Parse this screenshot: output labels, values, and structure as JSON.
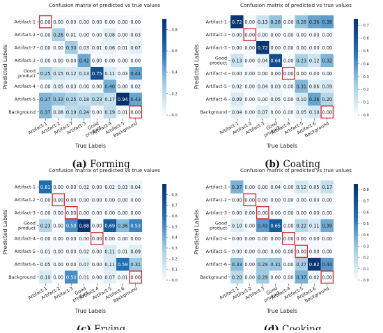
{
  "colors": {
    "cmap_light": "#f7fbff",
    "cmap_dark": "#08306b",
    "highlight": "#d62728"
  },
  "chart_data": [
    {
      "type": "heatmap",
      "title": "Confusion matrix of predicted vs true values",
      "xlabel": "True Labels",
      "ylabel": "Predicted Labels",
      "x_categories": [
        "Artifact-1",
        "Artifact-2",
        "Artifact-7",
        "Artifact-3",
        "Good product",
        "Artifact-4",
        "Artifact-5",
        "Background"
      ],
      "y_categories": [
        "Artifact-1",
        "Artifact-2",
        "Artifact-7",
        "Artifact-3",
        "Good product",
        "Artifact-4",
        "Artifact-5",
        "Background"
      ],
      "values": [
        [
          0.0,
          0.0,
          0.0,
          0.0,
          0.0,
          0.0,
          0.0,
          0.0
        ],
        [
          0.0,
          0.28,
          0.01,
          0.0,
          0.0,
          0.08,
          0.0,
          0.03
        ],
        [
          0.0,
          0.0,
          0.3,
          0.03,
          0.01,
          0.06,
          0.01,
          0.07
        ],
        [
          0.0,
          0.0,
          0.0,
          0.42,
          0.0,
          0.0,
          0.0,
          0.0
        ],
        [
          0.25,
          0.15,
          0.12,
          0.13,
          0.75,
          0.11,
          0.03,
          0.44
        ],
        [
          0.0,
          0.05,
          0.03,
          0.0,
          0.0,
          0.4,
          0.0,
          0.02
        ],
        [
          0.37,
          0.33,
          0.25,
          0.18,
          0.23,
          0.17,
          0.94,
          0.43
        ],
        [
          0.37,
          0.08,
          0.19,
          0.24,
          0.0,
          0.19,
          0.01,
          0.0
        ]
      ],
      "highlighted_cells": [
        [
          0,
          0
        ],
        [
          7,
          7
        ]
      ],
      "colorbar": {
        "min": 0.0,
        "max": 0.9,
        "ticks": [
          "0.8",
          "0.6",
          "0.4",
          "0.2",
          "0.0"
        ]
      },
      "caption_label": "(a)",
      "caption_name": "Forming"
    },
    {
      "type": "heatmap",
      "title": "Confusion matrix of predicted vs true values",
      "xlabel": "True Labels",
      "ylabel": "Predicted Labels",
      "x_categories": [
        "Artifact-1",
        "Artifact-2",
        "Artifact-3",
        "Good product",
        "Artifact-4",
        "Artifact-5",
        "Artifact-6",
        "Background"
      ],
      "y_categories": [
        "Artifact-1",
        "Artifact-2",
        "Artifact-3",
        "Good product",
        "Artifact-4",
        "Artifact-5",
        "Artifact-6",
        "Background"
      ],
      "values": [
        [
          0.72,
          0.0,
          0.13,
          0.28,
          0.0,
          0.28,
          0.36,
          0.38
        ],
        [
          0.0,
          0.0,
          0.0,
          0.0,
          0.0,
          0.0,
          0.0,
          0.0
        ],
        [
          0.0,
          0.0,
          0.72,
          0.0,
          0.0,
          0.0,
          0.0,
          0.0
        ],
        [
          0.13,
          0.0,
          0.04,
          0.64,
          0.0,
          0.23,
          0.12,
          0.32
        ],
        [
          0.0,
          0.0,
          0.0,
          0.0,
          0.0,
          0.0,
          0.0,
          0.0
        ],
        [
          0.02,
          0.0,
          0.04,
          0.03,
          0.0,
          0.31,
          0.06,
          0.09
        ],
        [
          0.09,
          0.0,
          0.0,
          0.05,
          0.0,
          0.1,
          0.36,
          0.2
        ],
        [
          0.04,
          0.0,
          0.07,
          0.0,
          0.0,
          0.05,
          0.1,
          0.0
        ]
      ],
      "highlighted_cells": [
        [
          1,
          1
        ],
        [
          4,
          4
        ],
        [
          7,
          7
        ]
      ],
      "colorbar": {
        "min": 0.0,
        "max": 0.75,
        "ticks": [
          "0.7",
          "0.6",
          "0.5",
          "0.4",
          "0.3",
          "0.2",
          "0.1",
          "0.0"
        ]
      },
      "caption_label": "(b)",
      "caption_name": "Coating"
    },
    {
      "type": "heatmap",
      "title": "Confusion matrix of predicted vs true values",
      "xlabel": "True Labels",
      "ylabel": "Predicted Labels",
      "x_categories": [
        "Artifact-1",
        "Artifact-2",
        "Artifact-3",
        "Good product",
        "Artifact-4",
        "Artifact-5",
        "Artifact-6",
        "Background"
      ],
      "y_categories": [
        "Artifact-1",
        "Artifact-2",
        "Artifact-3",
        "Good product",
        "Artifact-4",
        "Artifact-5",
        "Artifact-6",
        "Background"
      ],
      "values": [
        [
          0.61,
          0.0,
          0.0,
          0.02,
          0.0,
          0.02,
          0.03,
          0.04
        ],
        [
          0.0,
          0.0,
          0.0,
          0.0,
          0.0,
          0.0,
          0.0,
          0.0
        ],
        [
          0.0,
          0.0,
          0.0,
          0.0,
          0.0,
          0.0,
          0.0,
          0.0
        ],
        [
          0.23,
          0.0,
          0.5,
          0.88,
          0.0,
          0.69,
          0.36,
          0.53
        ],
        [
          0.0,
          0.0,
          0.0,
          0.0,
          0.0,
          0.0,
          0.0,
          0.0
        ],
        [
          0.01,
          0.0,
          0.0,
          0.02,
          0.0,
          0.11,
          0.01,
          0.09
        ],
        [
          0.05,
          0.0,
          0.0,
          0.07,
          0.0,
          0.11,
          0.59,
          0.31
        ],
        [
          0.1,
          0.0,
          0.5,
          0.01,
          0.0,
          0.07,
          0.01,
          0.0
        ]
      ],
      "highlighted_cells": [
        [
          1,
          1
        ],
        [
          2,
          2
        ],
        [
          4,
          4
        ],
        [
          7,
          7
        ]
      ],
      "colorbar": {
        "min": 0.0,
        "max": 0.9,
        "ticks": [
          "0.8",
          "0.7",
          "0.6",
          "0.5",
          "0.4",
          "0.3",
          "0.2",
          "0.1",
          "0.0"
        ]
      },
      "caption_label": "(c)",
      "caption_name": "Frying"
    },
    {
      "type": "heatmap",
      "title": "Confusion matrix of predicted vs true values",
      "xlabel": "True Labels",
      "ylabel": "Predicted Labels",
      "x_categories": [
        "Artifact-1",
        "Artifact-2",
        "Artifact-3",
        "Good product",
        "Artifact-4",
        "Artifact-5",
        "Artifact-6",
        "Background"
      ],
      "y_categories": [
        "Artifact-1",
        "Artifact-2",
        "Artifact-3",
        "Good product",
        "Artifact-4",
        "Artifact-5",
        "Artifact-6",
        "Background"
      ],
      "values": [
        [
          0.37,
          0.0,
          0.0,
          0.04,
          0.0,
          0.12,
          0.05,
          0.17
        ],
        [
          0.0,
          0.0,
          0.0,
          0.0,
          0.0,
          0.0,
          0.0,
          0.0
        ],
        [
          0.0,
          0.0,
          0.0,
          0.0,
          0.0,
          0.0,
          0.0,
          0.0
        ],
        [
          0.1,
          0.0,
          0.43,
          0.65,
          0.0,
          0.22,
          0.11,
          0.39
        ],
        [
          0.0,
          0.0,
          0.0,
          0.0,
          0.0,
          0.0,
          0.0,
          0.0
        ],
        [
          0.0,
          0.0,
          0.0,
          0.0,
          0.0,
          0.0,
          0.0,
          0.0
        ],
        [
          0.33,
          0.0,
          0.29,
          0.31,
          0.0,
          0.27,
          0.82,
          0.44
        ],
        [
          0.2,
          0.0,
          0.29,
          0.0,
          0.0,
          0.37,
          0.02,
          0.0
        ]
      ],
      "highlighted_cells": [
        [
          1,
          1
        ],
        [
          2,
          2
        ],
        [
          4,
          4
        ],
        [
          5,
          5
        ],
        [
          7,
          7
        ]
      ],
      "colorbar": {
        "min": 0.0,
        "max": 0.85,
        "ticks": [
          "0.8",
          "0.7",
          "0.6",
          "0.5",
          "0.4",
          "0.3",
          "0.2",
          "0.1",
          "0.0"
        ]
      },
      "caption_label": "(d)",
      "caption_name": "Cooking"
    }
  ]
}
